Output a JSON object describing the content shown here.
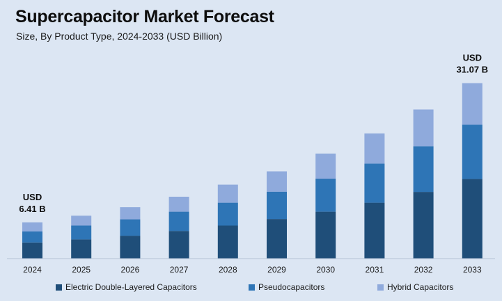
{
  "header": {
    "title": "Supercapacitor Market Forecast",
    "subtitle": "Size, By Product Type, 2024-2033 (USD Billion)"
  },
  "annotations": {
    "first": {
      "line1": "USD",
      "line2": "6.41 B"
    },
    "last": {
      "line1": "USD",
      "line2": "31.07 B"
    }
  },
  "colors": {
    "background": "#dce6f3",
    "edlc": "#1f4e79",
    "pseudo": "#2e75b6",
    "hybrid": "#8faadc",
    "axis": "#b4c2d6"
  },
  "chart_data": {
    "type": "bar",
    "stacked": true,
    "title": "Supercapacitor Market Forecast",
    "subtitle": "Size, By Product Type, 2024-2033 (USD Billion)",
    "categories": [
      "2024",
      "2025",
      "2026",
      "2027",
      "2028",
      "2029",
      "2030",
      "2031",
      "2032",
      "2033"
    ],
    "series": [
      {
        "name": "Electric Double-Layered Capacitors",
        "values": [
          2.85,
          3.4,
          4.05,
          4.9,
          5.85,
          7.0,
          8.3,
          9.9,
          11.8,
          14.1
        ]
      },
      {
        "name": "Pseudocapacitors",
        "values": [
          1.95,
          2.45,
          2.9,
          3.4,
          4.05,
          4.85,
          5.85,
          6.9,
          8.1,
          9.6
        ]
      },
      {
        "name": "Hybrid Capacitors",
        "values": [
          1.61,
          1.75,
          2.15,
          2.65,
          3.2,
          3.6,
          4.45,
          5.35,
          6.5,
          7.37
        ]
      }
    ],
    "totals_labeled": {
      "2024": "USD 6.41 B",
      "2033": "USD 31.07 B"
    },
    "ylim": [
      0,
      32
    ],
    "grid": false,
    "legend_position": "bottom"
  }
}
